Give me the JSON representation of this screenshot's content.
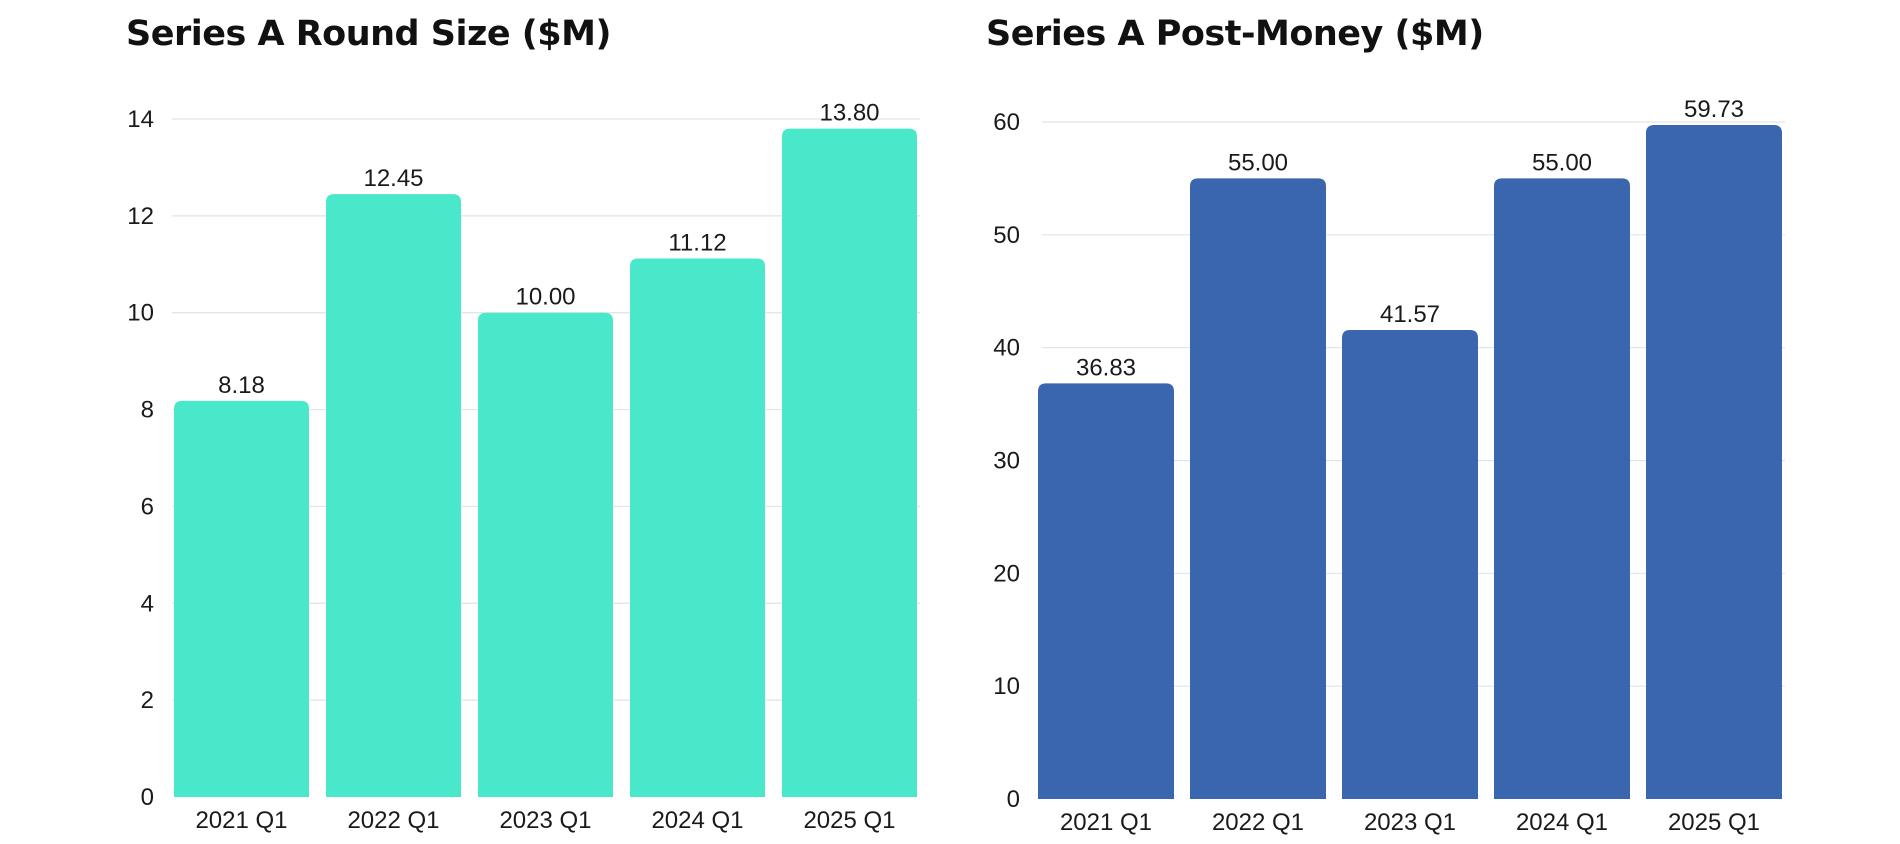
{
  "chart_data": [
    {
      "id": "round-size",
      "type": "bar",
      "title": "Series A Round Size ($M)",
      "xlabel": "",
      "ylabel": "",
      "categories": [
        "2021 Q1",
        "2022 Q1",
        "2023 Q1",
        "2024 Q1",
        "2025 Q1"
      ],
      "values": [
        8.18,
        12.45,
        10.0,
        11.12,
        13.8
      ],
      "value_labels": [
        "8.18",
        "12.45",
        "10.00",
        "11.12",
        "13.80"
      ],
      "ylim": [
        0,
        14
      ],
      "yticks": [
        0,
        2,
        4,
        6,
        8,
        10,
        12,
        14
      ],
      "grid": true,
      "color": "#4AE8CB"
    },
    {
      "id": "post-money",
      "type": "bar",
      "title": "Series A Post-Money ($M)",
      "xlabel": "",
      "ylabel": "",
      "categories": [
        "2021 Q1",
        "2022 Q1",
        "2023 Q1",
        "2024 Q1",
        "2025 Q1"
      ],
      "values": [
        36.83,
        55.0,
        41.57,
        55.0,
        59.73
      ],
      "value_labels": [
        "36.83",
        "55.00",
        "41.57",
        "55.00",
        "59.73"
      ],
      "ylim": [
        0,
        60
      ],
      "yticks": [
        0,
        10,
        20,
        30,
        40,
        50,
        60
      ],
      "grid": true,
      "color": "#3A66B0"
    }
  ]
}
